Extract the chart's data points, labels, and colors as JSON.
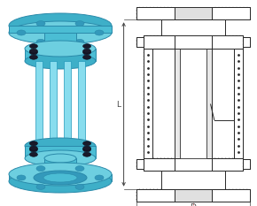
{
  "bg_color": "#ffffff",
  "line_color": "#2a2a2a",
  "blue_main": "#4bbdd4",
  "blue_light": "#6dcfe0",
  "blue_dark": "#2a8aaa",
  "blue_mid": "#3eafc8",
  "dim_color": "#444444",
  "fig_width": 2.9,
  "fig_height": 2.33,
  "dpi": 100
}
